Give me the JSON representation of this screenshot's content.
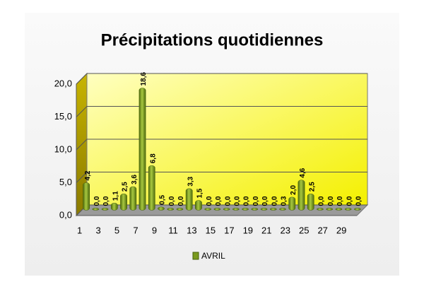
{
  "chart_data": {
    "type": "bar3d",
    "title": "Précipitations quotidiennes",
    "categories": [
      "1",
      null,
      "3",
      null,
      "5",
      null,
      "7",
      null,
      "9",
      null,
      "11",
      null,
      "13",
      null,
      "15",
      null,
      "17",
      null,
      "19",
      null,
      "21",
      null,
      "23",
      null,
      "25",
      null,
      "27",
      null,
      "29",
      null
    ],
    "series": [
      {
        "name": "AVRIL",
        "color": "#7a9a1e",
        "values": [
          4.2,
          0.0,
          0.0,
          1.1,
          2.5,
          3.6,
          18.6,
          6.8,
          0.5,
          0.0,
          0.0,
          3.3,
          1.5,
          0.0,
          0.0,
          0.0,
          0.0,
          0.0,
          0.0,
          0.0,
          0.0,
          0.3,
          2.0,
          4.6,
          2.5,
          0.0,
          0.0,
          0.0,
          0.0,
          0.0
        ],
        "value_labels": [
          "4,2",
          "0,0",
          "0,0",
          "1,1",
          "2,5",
          "3,6",
          "18,6",
          "6,8",
          "0,5",
          "0,0",
          "0,0",
          "3,3",
          "1,5",
          "0,0",
          "0,0",
          "0,0",
          "0,0",
          "0,0",
          "0,0",
          "0,0",
          "0,0",
          "0,3",
          "2,0",
          "4,6",
          "2,5",
          "0,0",
          "0,0",
          "0,0",
          "0,0",
          "0,0"
        ]
      }
    ],
    "ylim": [
      0,
      20
    ],
    "yticks": [
      {
        "value": 0,
        "label": "0,0"
      },
      {
        "value": 5,
        "label": "5,0"
      },
      {
        "value": 10,
        "label": "10,0"
      },
      {
        "value": 15,
        "label": "15,0"
      },
      {
        "value": 20,
        "label": "20,0"
      }
    ],
    "grid": true,
    "legend": "bottom"
  }
}
